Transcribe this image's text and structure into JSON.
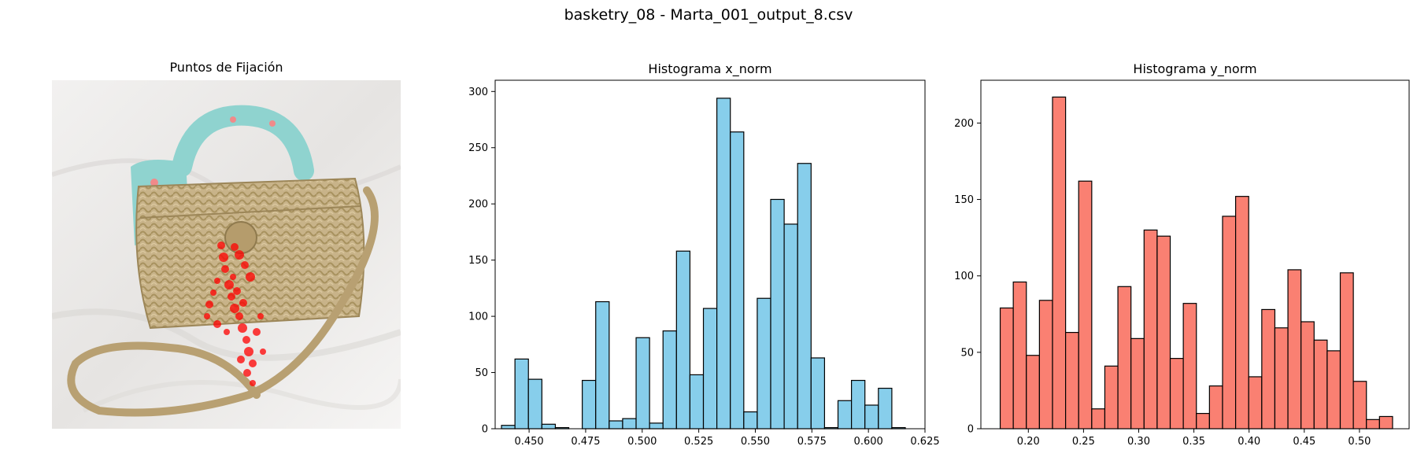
{
  "figure_title": "basketry_08 - Marta_001_output_8.csv",
  "panel_image": {
    "title": "Puntos de Fijación",
    "description_colors": {
      "background": "#ebe8e6",
      "fixation": "#ff0000"
    }
  },
  "chart_data": [
    {
      "type": "bar",
      "title": "Histograma x_norm",
      "xlabel": "",
      "ylabel": "",
      "color": "#87ceeb",
      "edgecolor": "#000000",
      "bin_edges_start": 0.4378,
      "bin_width": 0.00595,
      "values": [
        3,
        62,
        44,
        4,
        1,
        0,
        43,
        113,
        7,
        9,
        81,
        5,
        87,
        158,
        48,
        107,
        294,
        264,
        15,
        116,
        204,
        182,
        236,
        63,
        1,
        25,
        43,
        21,
        36,
        1
      ],
      "xlim": [
        0.435,
        0.625
      ],
      "ylim": [
        0,
        310
      ],
      "xticks": [
        0.45,
        0.475,
        0.5,
        0.525,
        0.55,
        0.575,
        0.6,
        0.625
      ],
      "xtick_labels": [
        "0.450",
        "0.475",
        "0.500",
        "0.525",
        "0.550",
        "0.575",
        "0.600",
        "0.625"
      ],
      "yticks": [
        0,
        50,
        100,
        150,
        200,
        250,
        300
      ],
      "ytick_labels": [
        "0",
        "50",
        "100",
        "150",
        "200",
        "250",
        "300"
      ]
    },
    {
      "type": "bar",
      "title": "Histograma y_norm",
      "xlabel": "",
      "ylabel": "",
      "color": "#fa8072",
      "edgecolor": "#000000",
      "bin_edges_start": 0.1745,
      "bin_width": 0.01185,
      "values": [
        79,
        96,
        48,
        84,
        217,
        63,
        162,
        13,
        41,
        93,
        59,
        130,
        126,
        46,
        82,
        10,
        28,
        139,
        152,
        34,
        78,
        66,
        104,
        70,
        58,
        51,
        102,
        31,
        6,
        8
      ],
      "xlim": [
        0.157,
        0.545
      ],
      "ylim": [
        0,
        228
      ],
      "xticks": [
        0.2,
        0.25,
        0.3,
        0.35,
        0.4,
        0.45,
        0.5
      ],
      "xtick_labels": [
        "0.20",
        "0.25",
        "0.30",
        "0.35",
        "0.40",
        "0.45",
        "0.50"
      ],
      "yticks": [
        0,
        50,
        100,
        150,
        200
      ],
      "ytick_labels": [
        "0",
        "50",
        "100",
        "150",
        "200"
      ]
    }
  ]
}
